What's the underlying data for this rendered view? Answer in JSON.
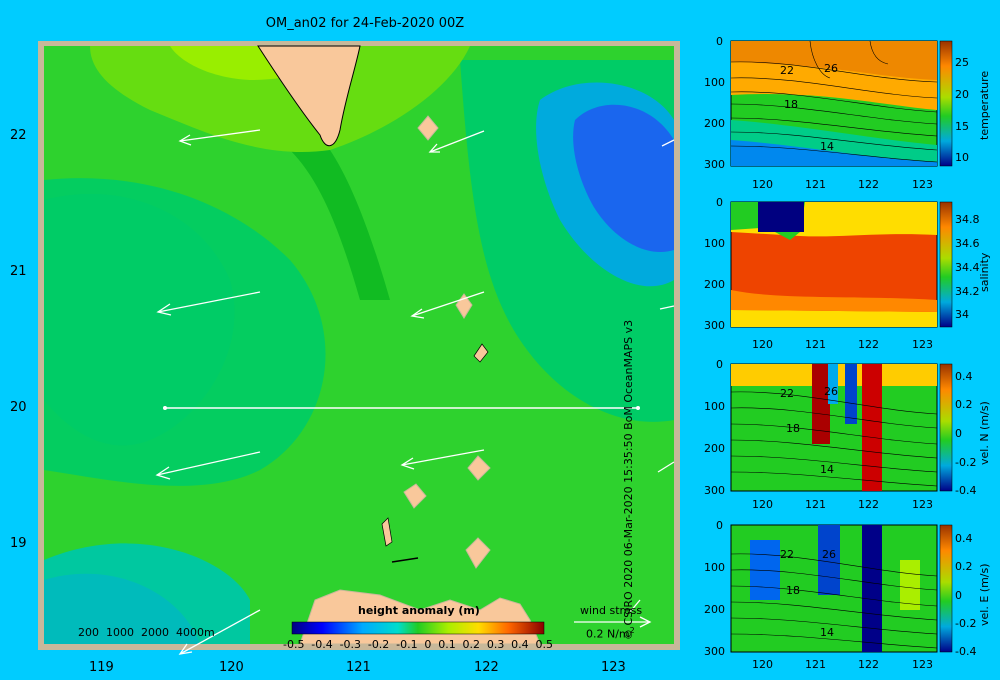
{
  "title": "OM_an02 for 24-Feb-2020 00Z",
  "map": {
    "lat_ticks": [
      "22",
      "21",
      "20",
      "19"
    ],
    "lon_ticks": [
      "119",
      "120",
      "121",
      "122",
      "123"
    ],
    "depth_legend": "200  1000  2000  4000m",
    "colorbar_title": "height anomaly  (m)",
    "colorbar_ticks": [
      "-0.5",
      "-0.4",
      "-0.3",
      "-0.2",
      "-0.1",
      "0",
      "0.1",
      "0.2",
      "0.3",
      "0.4",
      "0.5"
    ],
    "wind_label": "wind stress",
    "wind_scale": "0.2 N/m",
    "wind_scale_sup": "2"
  },
  "credit": "© CSIRO 2020   06-Mar-2020 15:35:50 BoM OceanMAPS v3",
  "panels": [
    {
      "label": "temperature",
      "cb_ticks": [
        "25",
        "20",
        "15",
        "10"
      ],
      "contours": [
        "22",
        "26",
        "18",
        "14"
      ]
    },
    {
      "label": "salinity",
      "cb_ticks": [
        "34.8",
        "34.6",
        "34.4",
        "34.2",
        "34"
      ],
      "contours": []
    },
    {
      "label": "vel. N  (m/s)",
      "cb_ticks": [
        "0.4",
        "0.2",
        "0",
        "-0.2",
        "-0.4"
      ],
      "contours": [
        "22",
        "26",
        "18",
        "14"
      ]
    },
    {
      "label": "vel. E  (m/s)",
      "cb_ticks": [
        "0.4",
        "0.2",
        "0",
        "-0.2",
        "-0.4"
      ],
      "contours": [
        "22",
        "26",
        "18",
        "14"
      ]
    }
  ],
  "panel_depth_ticks": [
    "0",
    "100",
    "200",
    "300"
  ],
  "panel_lon_ticks": [
    "120",
    "121",
    "122",
    "123"
  ],
  "colors": {
    "background": "#00ccff",
    "land": "#f9c89b",
    "frame": "#c8b89a",
    "field_main": "#2ed22e",
    "field_light": "#00cc55",
    "field_dark": "#11bb22",
    "low_anomaly": "#1a66ee"
  }
}
